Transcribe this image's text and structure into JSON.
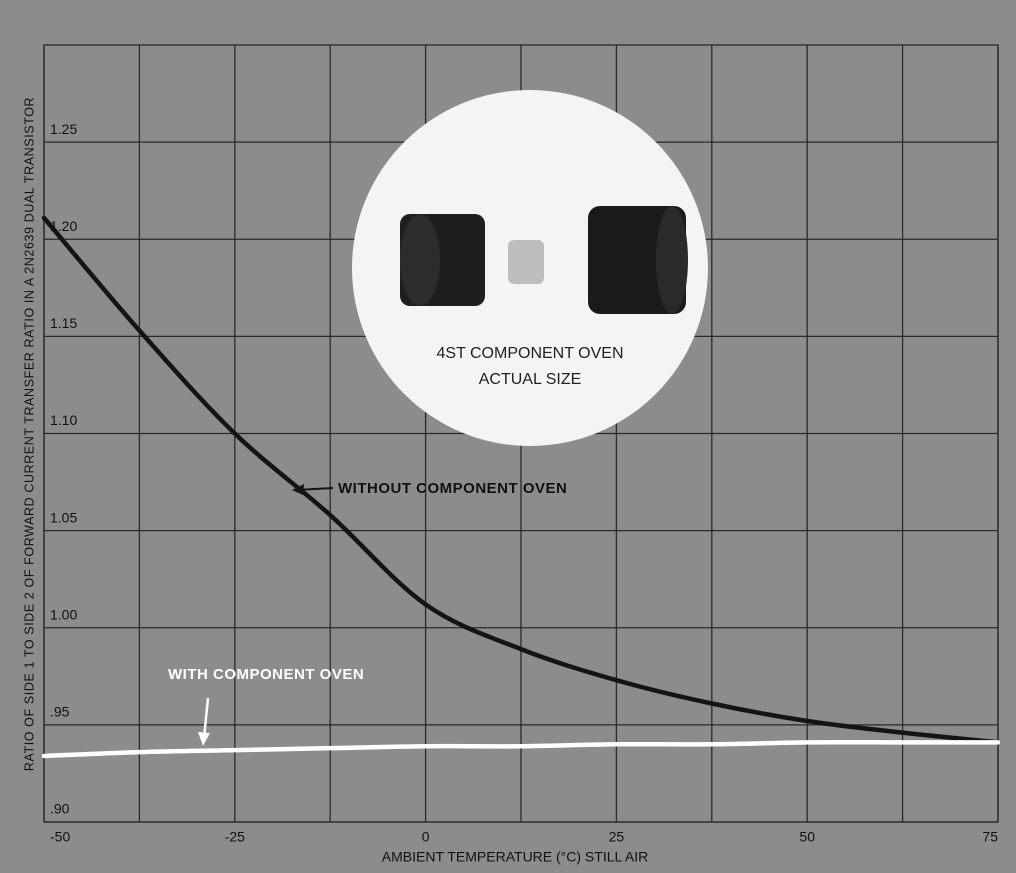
{
  "chart_data": {
    "type": "line",
    "y_label": "RATIO OF SIDE 1 TO SIDE 2 OF FORWARD CURRENT TRANSFER RATIO IN A 2N2639 DUAL TRANSISTOR",
    "x_label": "AMBIENT TEMPERATURE (°C) STILL AIR",
    "annotations": [
      "WITHOUT COMPONENT OVEN",
      "WITH COMPONENT OVEN",
      "4ST COMPONENT OVEN",
      "ACTUAL SIZE"
    ],
    "x": [
      -50,
      -37.5,
      -25,
      -12.5,
      0,
      12.5,
      25,
      37.5,
      50,
      62.5,
      75
    ],
    "series": [
      {
        "name": "WITHOUT COMPONENT OVEN",
        "color": "#141414",
        "values": [
          1.211,
          1.153,
          1.1,
          1.058,
          1.012,
          0.989,
          0.973,
          0.961,
          0.952,
          0.946,
          0.941
        ]
      },
      {
        "name": "WITH COMPONENT OVEN",
        "color": "#ffffff",
        "values": [
          0.934,
          0.936,
          0.937,
          0.938,
          0.939,
          0.939,
          0.94,
          0.94,
          0.941,
          0.941,
          0.941
        ]
      }
    ],
    "xlim": [
      -50,
      75
    ],
    "xticks": [
      -50,
      -25,
      0,
      25,
      50,
      75
    ],
    "ylim": [
      0.9,
      1.3
    ],
    "yticks": [
      {
        "value": 0.9,
        "label": ".90"
      },
      {
        "value": 0.95,
        "label": ".95"
      },
      {
        "value": 1.0,
        "label": "1.00"
      },
      {
        "value": 1.05,
        "label": "1.05"
      },
      {
        "value": 1.1,
        "label": "1.10"
      },
      {
        "value": 1.15,
        "label": "1.15"
      },
      {
        "value": 1.2,
        "label": "1.20"
      },
      {
        "value": 1.25,
        "label": "1.25"
      }
    ],
    "grid": true
  }
}
